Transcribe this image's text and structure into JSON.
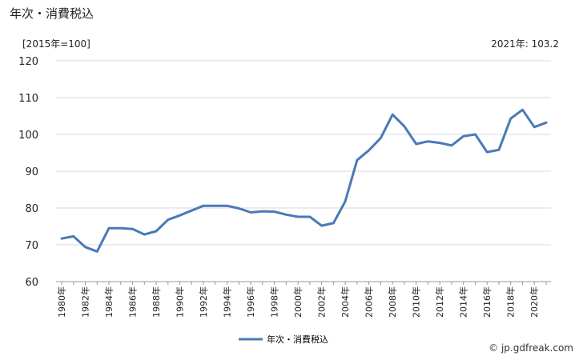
{
  "header": {
    "title": "年次・消費税込",
    "unit": "[2015年=100]",
    "latest_label": "2021年: 103.2"
  },
  "footer": {
    "credit": "© jp.gdfreak.com"
  },
  "colors": {
    "line": "#4a7ab8",
    "grid": "#d9d9d9",
    "axis": "#999999"
  },
  "chart_data": {
    "type": "line",
    "title": "年次・消費税込",
    "xlabel": "",
    "ylabel": "[2015年=100]",
    "ylim": [
      60,
      120
    ],
    "yticks": [
      60,
      70,
      80,
      90,
      100,
      110,
      120
    ],
    "grid": "horizontal",
    "legend_position": "bottom-center",
    "x": [
      1980,
      1981,
      1982,
      1983,
      1984,
      1985,
      1986,
      1987,
      1988,
      1989,
      1990,
      1991,
      1992,
      1993,
      1994,
      1995,
      1996,
      1997,
      1998,
      1999,
      2000,
      2001,
      2002,
      2003,
      2004,
      2005,
      2006,
      2007,
      2008,
      2009,
      2010,
      2011,
      2012,
      2013,
      2014,
      2015,
      2016,
      2017,
      2018,
      2019,
      2020,
      2021
    ],
    "x_tick_labels": [
      "1980年",
      "1982年",
      "1984年",
      "1986年",
      "1988年",
      "1990年",
      "1992年",
      "1994年",
      "1996年",
      "1998年",
      "2000年",
      "2002年",
      "2004年",
      "2006年",
      "2008年",
      "2010年",
      "2012年",
      "2014年",
      "2016年",
      "2018年",
      "2020年"
    ],
    "series": [
      {
        "name": "年次・消費税込",
        "values": [
          71.7,
          72.3,
          69.4,
          68.2,
          74.5,
          74.5,
          74.3,
          72.8,
          73.7,
          76.8,
          78.0,
          79.3,
          80.6,
          80.6,
          80.6,
          79.9,
          78.8,
          79.1,
          79.0,
          78.2,
          77.6,
          77.6,
          75.2,
          75.9,
          81.8,
          93.0,
          95.7,
          99.0,
          105.4,
          102.2,
          97.4,
          98.1,
          97.7,
          97.0,
          99.5,
          100.0,
          95.2,
          95.8,
          104.3,
          106.7,
          102.0,
          103.2
        ]
      }
    ]
  }
}
